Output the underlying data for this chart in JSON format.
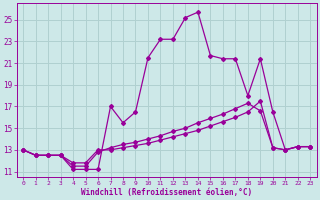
{
  "background_color": "#cde8e8",
  "grid_color": "#b0d0d0",
  "line_color": "#990099",
  "marker_color": "#990099",
  "xlabel": "Windchill (Refroidissement éolien,°C)",
  "xlim": [
    -0.5,
    23.5
  ],
  "ylim": [
    10.5,
    26.5
  ],
  "yticks": [
    11,
    13,
    15,
    17,
    19,
    21,
    23,
    25
  ],
  "xticks": [
    0,
    1,
    2,
    3,
    4,
    5,
    6,
    7,
    8,
    9,
    10,
    11,
    12,
    13,
    14,
    15,
    16,
    17,
    18,
    19,
    20,
    21,
    22,
    23
  ],
  "line1_x": [
    0,
    1,
    2,
    3,
    4,
    5,
    6,
    7,
    8,
    9,
    10,
    11,
    12,
    13,
    14,
    15,
    16,
    17,
    18,
    19,
    20,
    21,
    22,
    23
  ],
  "line1_y": [
    13.0,
    12.5,
    12.5,
    12.5,
    11.2,
    11.2,
    11.2,
    17.0,
    15.5,
    16.5,
    21.5,
    23.2,
    23.2,
    25.2,
    25.7,
    21.7,
    21.4,
    21.4,
    18.0,
    21.4,
    16.5,
    13.0,
    13.3,
    13.3
  ],
  "line2_x": [
    0,
    1,
    2,
    3,
    4,
    5,
    6,
    7,
    8,
    9,
    10,
    11,
    12,
    13,
    14,
    15,
    16,
    17,
    18,
    19,
    20,
    21,
    22,
    23
  ],
  "line2_y": [
    13.0,
    12.5,
    12.5,
    12.5,
    11.8,
    11.8,
    13.0,
    13.0,
    13.2,
    13.4,
    13.6,
    13.9,
    14.2,
    14.5,
    14.8,
    15.2,
    15.6,
    16.0,
    16.5,
    17.5,
    13.2,
    13.0,
    13.3,
    13.3
  ],
  "line3_x": [
    0,
    1,
    2,
    3,
    4,
    5,
    6,
    7,
    8,
    9,
    10,
    11,
    12,
    13,
    14,
    15,
    16,
    17,
    18,
    19,
    20,
    21,
    22,
    23
  ],
  "line3_y": [
    13.0,
    12.5,
    12.5,
    12.5,
    11.5,
    11.5,
    12.8,
    13.2,
    13.5,
    13.7,
    14.0,
    14.3,
    14.7,
    15.0,
    15.5,
    15.9,
    16.3,
    16.8,
    17.3,
    16.6,
    13.2,
    13.0,
    13.3,
    13.3
  ]
}
